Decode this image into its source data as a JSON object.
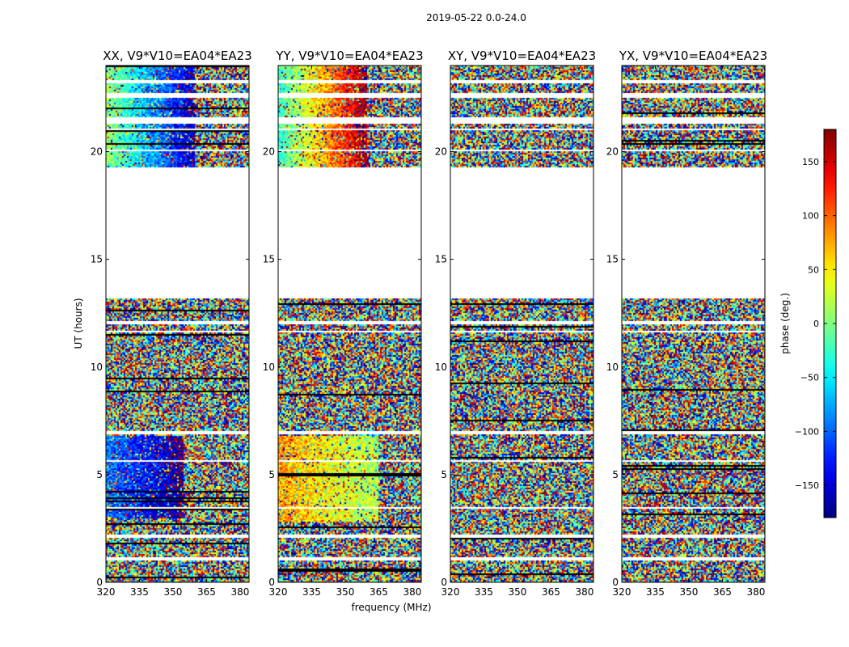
{
  "chart_data": {
    "type": "heatmap",
    "suptitle": "2019-05-22 0.0-24.0",
    "xlabel": "frequency (MHz)",
    "ylabel": "UT (hours)",
    "xlim": [
      320,
      384
    ],
    "ylim": [
      0,
      24
    ],
    "xticks": [
      320,
      335,
      350,
      365,
      380
    ],
    "yticks": [
      0,
      5,
      10,
      15,
      20
    ],
    "colorbar": {
      "label": "phase (deg.)",
      "range": [
        -180,
        180
      ],
      "ticks": [
        150,
        100,
        50,
        0,
        -50,
        -100,
        -150
      ],
      "tick_labels": [
        "150",
        "100",
        "50",
        "0",
        "−50",
        "−100",
        "−150"
      ],
      "colors": [
        "#00007f",
        "#0000ff",
        "#007fff",
        "#00ffff",
        "#7fff7f",
        "#ffff00",
        "#ff7f00",
        "#ff0000",
        "#7f0000"
      ]
    },
    "panels": [
      {
        "title": "XX, V9*V10=EA04*EA23",
        "coherent_regions": [
          {
            "ut": [
              19.3,
              24.0
            ],
            "phase_start": 10,
            "phase_end": -160,
            "freq_end": 360
          },
          {
            "ut": [
              3.0,
              6.8
            ],
            "phase_start": -90,
            "phase_end": -170,
            "freq_end": 355
          }
        ]
      },
      {
        "title": "YY, V9*V10=EA04*EA23",
        "coherent_regions": [
          {
            "ut": [
              19.3,
              24.0
            ],
            "phase_start": -30,
            "phase_end": 170,
            "freq_end": 360
          },
          {
            "ut": [
              2.8,
              6.8
            ],
            "phase_start": 80,
            "phase_end": 10,
            "freq_end": 365
          }
        ]
      },
      {
        "title": "XY, V9*V10=EA04*EA23",
        "coherent_regions": []
      },
      {
        "title": "YX, V9*V10=EA04*EA23",
        "coherent_regions": []
      }
    ],
    "data_gaps_ut": [
      [
        13.2,
        19.3
      ],
      [
        21.3,
        21.6
      ],
      [
        22.5,
        22.7
      ],
      [
        23.2,
        23.3
      ],
      [
        21.0,
        21.1
      ],
      [
        20.0,
        20.1
      ],
      [
        11.6,
        11.7
      ],
      [
        12.0,
        12.1
      ],
      [
        6.9,
        7.0
      ],
      [
        5.6,
        5.7
      ],
      [
        3.4,
        3.5
      ],
      [
        2.1,
        2.2
      ],
      [
        1.0,
        1.2
      ]
    ]
  }
}
